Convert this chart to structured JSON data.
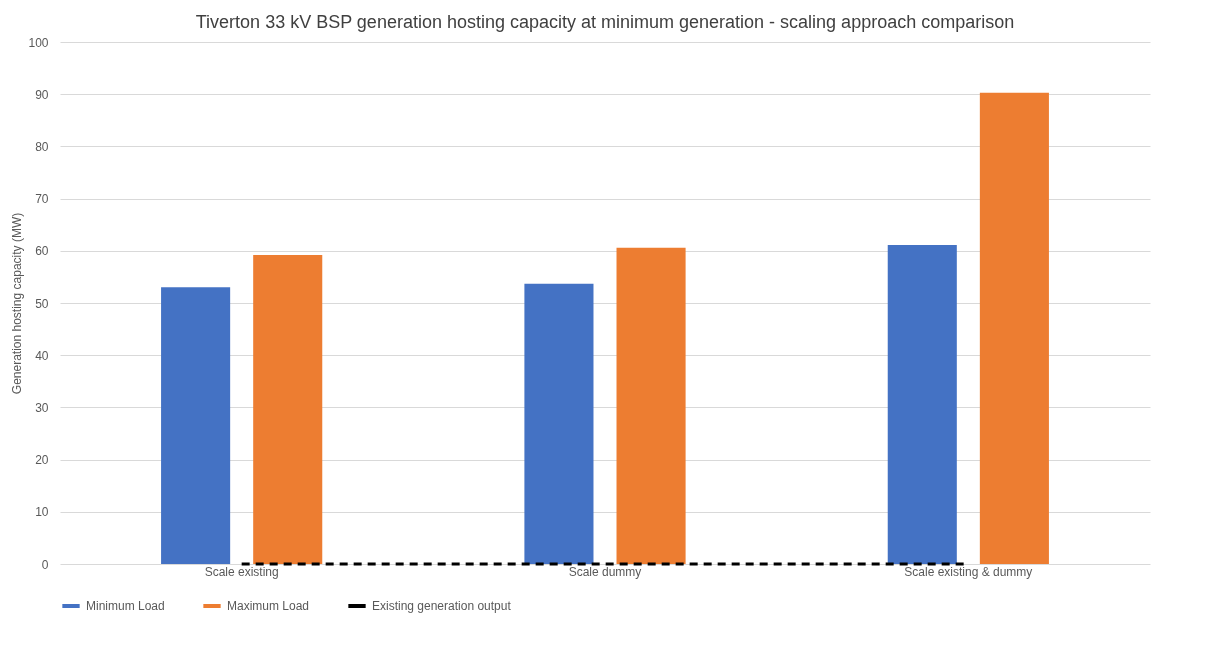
{
  "chart_data": {
    "type": "bar",
    "title": "Tiverton 33 kV BSP generation hosting capacity at minimum generation  - scaling approach comparison",
    "ylabel": "Generation hosting capacity (MW)",
    "categories": [
      "Scale existing",
      "Scale dummy",
      "Scale existing & dummy"
    ],
    "series": [
      {
        "name": "Minimum Load",
        "color": "#4472c4",
        "values": [
          53.0,
          53.7,
          61.1
        ]
      },
      {
        "name": "Maximum Load",
        "color": "#ed7d31",
        "values": [
          59.2,
          60.6,
          90.3
        ]
      },
      {
        "name": "Existing generation output",
        "type": "line",
        "color": "#000000",
        "line_style": "dashed",
        "values": [
          0,
          0,
          0
        ]
      }
    ],
    "ylim": [
      0,
      100
    ],
    "yticks": [
      0,
      10,
      20,
      30,
      40,
      50,
      60,
      70,
      80,
      90,
      100
    ],
    "grid": "y",
    "legend": "bottom"
  }
}
